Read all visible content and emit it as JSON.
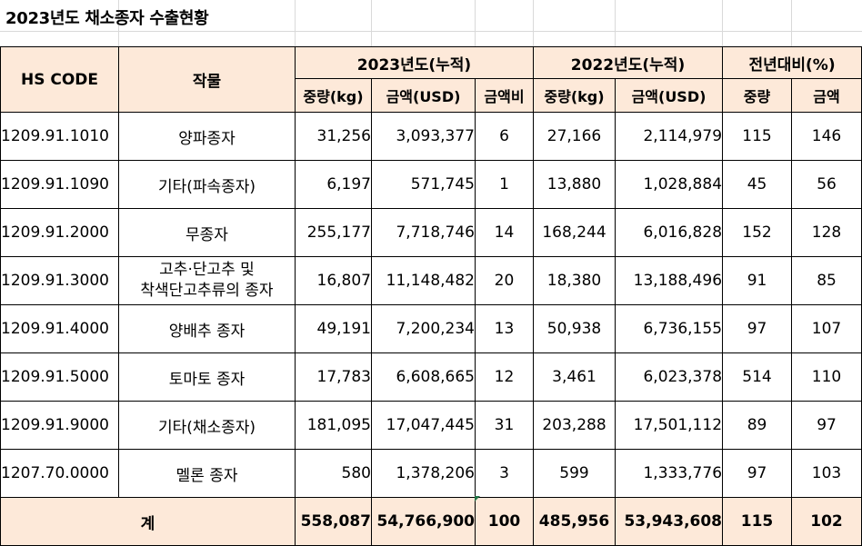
{
  "sheet": {
    "title": "2023년도 채소종자 수출현황"
  },
  "table": {
    "headers": {
      "hs_code": "HS CODE",
      "crop": "작물",
      "group_2023": "2023년도(누적)",
      "group_2022": "2022년도(누적)",
      "group_yoy": "전년대비(%)",
      "weight_kg_2023": "중량(kg)",
      "amount_usd_2023": "금액(USD)",
      "amount_ratio": "금액비",
      "weight_kg_2022": "중량(kg)",
      "amount_usd_2022": "금액(USD)",
      "yoy_weight": "중량",
      "yoy_amount": "금액"
    },
    "rows": [
      {
        "hs": "1209.91.1010",
        "crop": "양파종자",
        "w23": "31,256",
        "a23": "3,093,377",
        "ratio": "6",
        "w22": "27,166",
        "a22": "2,114,979",
        "yw": "115",
        "ya": "146"
      },
      {
        "hs": "1209.91.1090",
        "crop": "기타(파속종자)",
        "w23": "6,197",
        "a23": "571,745",
        "ratio": "1",
        "w22": "13,880",
        "a22": "1,028,884",
        "yw": "45",
        "ya": "56"
      },
      {
        "hs": "1209.91.2000",
        "crop": "무종자",
        "w23": "255,177",
        "a23": "7,718,746",
        "ratio": "14",
        "w22": "168,244",
        "a22": "6,016,828",
        "yw": "152",
        "ya": "128"
      },
      {
        "hs": "1209.91.3000",
        "crop_line1": "고추·단고추 및",
        "crop_line2": "착색단고추류의 종자",
        "w23": "16,807",
        "a23": "11,148,482",
        "ratio": "20",
        "w22": "18,380",
        "a22": "13,188,496",
        "yw": "91",
        "ya": "85"
      },
      {
        "hs": "1209.91.4000",
        "crop": "양배추 종자",
        "w23": "49,191",
        "a23": "7,200,234",
        "ratio": "13",
        "w22": "50,938",
        "a22": "6,736,155",
        "yw": "97",
        "ya": "107"
      },
      {
        "hs": "1209.91.5000",
        "crop": "토마토 종자",
        "w23": "17,783",
        "a23": "6,608,665",
        "ratio": "12",
        "w22": "3,461",
        "a22": "6,023,378",
        "yw": "514",
        "ya": "110"
      },
      {
        "hs": "1209.91.9000",
        "crop": "기타(채소종자)",
        "w23": "181,095",
        "a23": "17,047,445",
        "ratio": "31",
        "w22": "203,288",
        "a22": "17,501,112",
        "yw": "89",
        "ya": "97"
      },
      {
        "hs": "1207.70.0000",
        "crop": "멜론 종자",
        "w23": "580",
        "a23": "1,378,206",
        "ratio": "3",
        "w22": "599",
        "a22": "1,333,776",
        "yw": "97",
        "ya": "103"
      }
    ],
    "total": {
      "label": "계",
      "w23": "558,087",
      "a23": "54,766,900",
      "ratio": "100",
      "w22": "485,956",
      "a22": "53,943,608",
      "yw": "115",
      "ya": "102"
    }
  },
  "colors": {
    "header_fill": "#fde9d9",
    "grid": "#d9d9d9",
    "border": "#000000",
    "cell_marker": "#217346"
  }
}
